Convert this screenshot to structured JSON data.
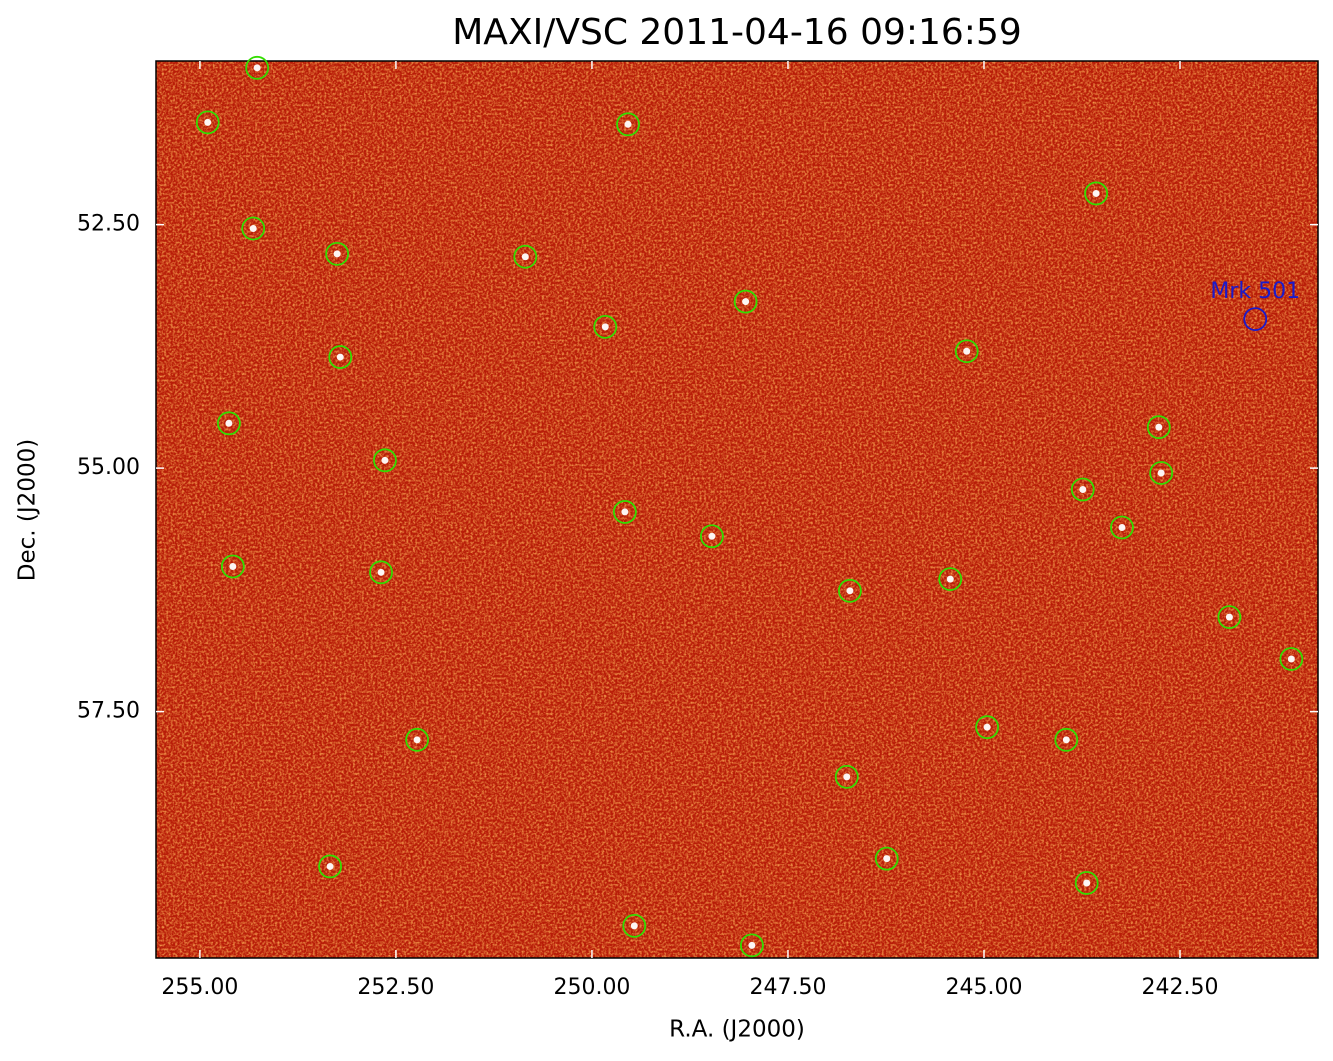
{
  "chart_data": {
    "type": "scatter",
    "title": "MAXI/VSC 2011-04-16 09:16:59",
    "xlabel": "R.A. (J2000)",
    "ylabel": "Dec. (J2000)",
    "xlim": [
      255.56,
      240.74
    ],
    "ylim": [
      60.03,
      50.82
    ],
    "xticks": [
      {
        "value": 255,
        "label": "255.00"
      },
      {
        "value": 252.5,
        "label": "252.50"
      },
      {
        "value": 250,
        "label": "250.00"
      },
      {
        "value": 247.5,
        "label": "247.50"
      },
      {
        "value": 245,
        "label": "245.00"
      },
      {
        "value": 242.5,
        "label": "242.50"
      }
    ],
    "yticks": [
      {
        "value": 52.5,
        "label": "52.50"
      },
      {
        "value": 55,
        "label": "55.00"
      },
      {
        "value": 57.5,
        "label": "57.50"
      }
    ],
    "background_color": "#b81c08",
    "sources": {
      "color": "#33dd00",
      "x": [
        254.27,
        254.9,
        249.54,
        243.57,
        254.32,
        253.25,
        250.85,
        248.04,
        249.83,
        253.21,
        245.22,
        254.63,
        242.77,
        252.64,
        242.74,
        243.74,
        249.58,
        243.24,
        248.47,
        254.58,
        252.69,
        245.43,
        246.71,
        241.87,
        241.08,
        244.96,
        252.23,
        243.95,
        246.75,
        246.24,
        253.34,
        243.69,
        249.46,
        247.96
      ],
      "y": [
        50.89,
        51.45,
        51.47,
        52.18,
        52.54,
        52.8,
        52.83,
        53.29,
        53.55,
        53.86,
        53.8,
        54.54,
        54.58,
        54.92,
        55.05,
        55.22,
        55.45,
        55.61,
        55.7,
        56.01,
        56.07,
        56.14,
        56.26,
        56.53,
        56.96,
        57.66,
        57.79,
        57.79,
        58.17,
        59.01,
        59.09,
        59.26,
        59.7,
        59.9
      ]
    },
    "annotations": [
      {
        "text": "Mrk 501",
        "x": 241.54,
        "y": 53.47,
        "color": "#1a1acc"
      }
    ]
  }
}
